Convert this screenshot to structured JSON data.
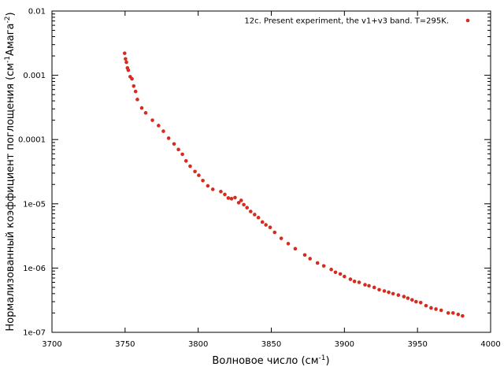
{
  "chart_data": {
    "type": "scatter",
    "xlabel": {
      "main": "Волновое число (см",
      "sup": "-1",
      "tail": ")"
    },
    "ylabel": {
      "a": "Нормализованный коэффициент поглощения (см",
      "sup1": "-1",
      "b": "Амага",
      "sup2": "-2",
      "c": ")"
    },
    "xlim": [
      3700,
      4000
    ],
    "ylim": [
      1e-07,
      0.01
    ],
    "yscale": "log",
    "grid": false,
    "legend_position": "top-right",
    "x_ticks": [
      3700,
      3750,
      3800,
      3850,
      3900,
      3950,
      4000
    ],
    "x_tick_labels": [
      "3700",
      "3750",
      "3800",
      "3850",
      "3900",
      "3950",
      "4000"
    ],
    "y_ticks": [
      1e-07,
      1e-06,
      1e-05,
      0.0001,
      0.001,
      0.01
    ],
    "y_tick_labels": [
      "1e-07",
      "1e-06",
      "1e-05",
      "0.0001",
      "0.001",
      "0.01"
    ],
    "series": [
      {
        "name": "12c. Present experiment, the v1+v3 band. T=295K.",
        "color": "#d62b1f",
        "points": [
          [
            3749.7,
            0.0022
          ],
          [
            3750.3,
            0.0018
          ],
          [
            3750.9,
            0.0016
          ],
          [
            3751.6,
            0.0013
          ],
          [
            3752.2,
            0.0012
          ],
          [
            3753.5,
            0.00095
          ],
          [
            3754.7,
            0.00088
          ],
          [
            3755.9,
            0.00068
          ],
          [
            3757.2,
            0.00056
          ],
          [
            3758.4,
            0.00042
          ],
          [
            3761.4,
            0.00031
          ],
          [
            3764.1,
            0.00026
          ],
          [
            3768.7,
            0.0002
          ],
          [
            3772.9,
            0.000165
          ],
          [
            3776.2,
            0.000135
          ],
          [
            3779.8,
            0.000105
          ],
          [
            3783.5,
            8.55e-05
          ],
          [
            3786.5,
            7e-05
          ],
          [
            3789.2,
            5.9e-05
          ],
          [
            3791.7,
            4.65e-05
          ],
          [
            3794.5,
            3.85e-05
          ],
          [
            3797.8,
            3.18e-05
          ],
          [
            3800.4,
            2.78e-05
          ],
          [
            3803.2,
            2.3e-05
          ],
          [
            3806.6,
            1.9e-05
          ],
          [
            3810.0,
            1.68e-05
          ],
          [
            3815.5,
            1.55e-05
          ],
          [
            3818.2,
            1.4e-05
          ],
          [
            3820.6,
            1.23e-05
          ],
          [
            3822.8,
            1.2e-05
          ],
          [
            3825.2,
            1.25e-05
          ],
          [
            3827.7,
            1.04e-05
          ],
          [
            3829.4,
            1.13e-05
          ],
          [
            3831.2,
            9.7e-06
          ],
          [
            3833.4,
            8.7e-06
          ],
          [
            3835.9,
            7.6e-06
          ],
          [
            3838.6,
            6.8e-06
          ],
          [
            3841.2,
            6.1e-06
          ],
          [
            3843.9,
            5.2e-06
          ],
          [
            3846.3,
            4.7e-06
          ],
          [
            3849.2,
            4.3e-06
          ],
          [
            3852.3,
            3.6e-06
          ],
          [
            3856.8,
            2.9e-06
          ],
          [
            3861.6,
            2.4e-06
          ],
          [
            3866.4,
            2e-06
          ],
          [
            3872.9,
            1.6e-06
          ],
          [
            3876.5,
            1.4e-06
          ],
          [
            3881.6,
            1.2e-06
          ],
          [
            3885.9,
            1.08e-06
          ],
          [
            3891.0,
            9.5e-07
          ],
          [
            3893.9,
            8.6e-07
          ],
          [
            3897.2,
            8.1e-07
          ],
          [
            3900.0,
            7.4e-07
          ],
          [
            3904.1,
            6.7e-07
          ],
          [
            3906.9,
            6.2e-07
          ],
          [
            3910.1,
            6e-07
          ],
          [
            3914.1,
            5.5e-07
          ],
          [
            3916.8,
            5.3e-07
          ],
          [
            3920.4,
            5e-07
          ],
          [
            3923.8,
            4.6e-07
          ],
          [
            3927.3,
            4.4e-07
          ],
          [
            3930.3,
            4.2e-07
          ],
          [
            3933.3,
            4e-07
          ],
          [
            3936.9,
            3.8e-07
          ],
          [
            3940.7,
            3.6e-07
          ],
          [
            3943.4,
            3.4e-07
          ],
          [
            3946.3,
            3.2e-07
          ],
          [
            3949.0,
            3e-07
          ],
          [
            3952.2,
            2.9e-07
          ],
          [
            3955.8,
            2.6e-07
          ],
          [
            3959.3,
            2.4e-07
          ],
          [
            3962.6,
            2.3e-07
          ],
          [
            3966.2,
            2.2e-07
          ],
          [
            3971.0,
            2e-07
          ],
          [
            3974.3,
            2e-07
          ],
          [
            3977.8,
            1.9e-07
          ],
          [
            3980.8,
            1.8e-07
          ]
        ]
      }
    ]
  }
}
